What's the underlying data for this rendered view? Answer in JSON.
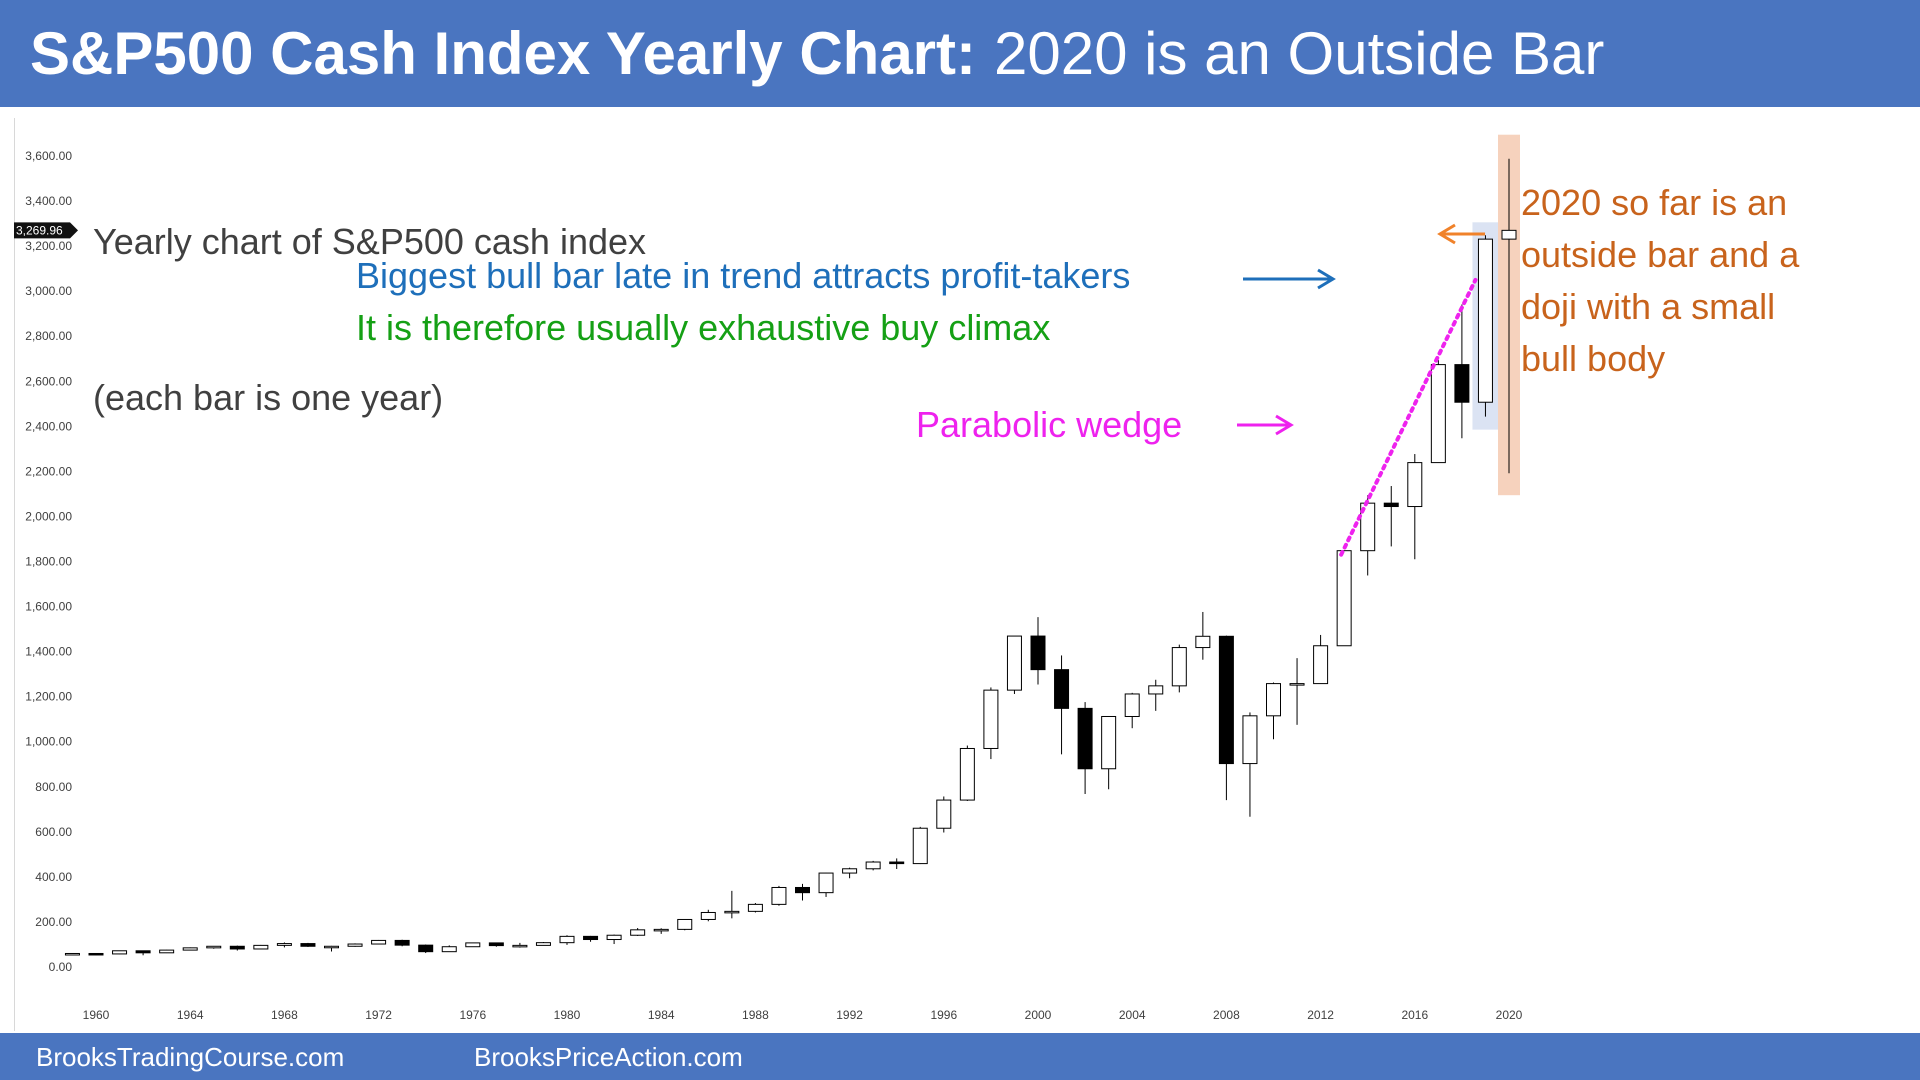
{
  "header": {
    "title_bold": "S&P500 Cash Index Yearly Chart:",
    "title_rest": "2020 is an Outside Bar",
    "background": "#4a75c0"
  },
  "footer": {
    "left": "BrooksTradingCourse.com",
    "right": "BrooksPriceAction.com"
  },
  "chart_data": {
    "type": "candlestick",
    "title": "Yearly chart of S&P500 cash index",
    "subtitle": "(each bar is one year)",
    "ylim": [
      0,
      3600
    ],
    "yticks": [
      0,
      200,
      400,
      600,
      800,
      1000,
      1200,
      1400,
      1600,
      1800,
      2000,
      2200,
      2400,
      2600,
      2800,
      3000,
      3200,
      3400,
      3600
    ],
    "ytick_labels": [
      "0.00",
      "200.00",
      "400.00",
      "600.00",
      "800.00",
      "1,000.00",
      "1,200.00",
      "1,400.00",
      "1,600.00",
      "1,800.00",
      "2,000.00",
      "2,200.00",
      "2,400.00",
      "2,600.00",
      "2,800.00",
      "3,000.00",
      "3,200.00",
      "3,400.00",
      "3,600.00"
    ],
    "xlim": [
      1958,
      2021
    ],
    "xticks": [
      1960,
      1964,
      1968,
      1972,
      1976,
      1980,
      1984,
      1988,
      1992,
      1996,
      2000,
      2004,
      2008,
      2012,
      2016,
      2020
    ],
    "current_price_label": "3,269.96",
    "current_price": 3269.96,
    "bull_color": "#ffffff",
    "bear_color": "#000000",
    "candles": [
      {
        "year": 1959,
        "open": 55,
        "high": 61,
        "low": 53,
        "close": 60
      },
      {
        "year": 1960,
        "open": 60,
        "high": 61,
        "low": 52,
        "close": 58
      },
      {
        "year": 1961,
        "open": 58,
        "high": 73,
        "low": 57,
        "close": 72
      },
      {
        "year": 1962,
        "open": 72,
        "high": 72,
        "low": 52,
        "close": 63
      },
      {
        "year": 1963,
        "open": 63,
        "high": 76,
        "low": 62,
        "close": 75
      },
      {
        "year": 1964,
        "open": 75,
        "high": 87,
        "low": 75,
        "close": 85
      },
      {
        "year": 1965,
        "open": 85,
        "high": 93,
        "low": 81,
        "close": 92
      },
      {
        "year": 1966,
        "open": 92,
        "high": 95,
        "low": 73,
        "close": 80
      },
      {
        "year": 1967,
        "open": 80,
        "high": 98,
        "low": 79,
        "close": 96
      },
      {
        "year": 1968,
        "open": 96,
        "high": 109,
        "low": 87,
        "close": 104
      },
      {
        "year": 1969,
        "open": 104,
        "high": 107,
        "low": 89,
        "close": 92
      },
      {
        "year": 1970,
        "open": 92,
        "high": 94,
        "low": 69,
        "close": 92
      },
      {
        "year": 1971,
        "open": 92,
        "high": 105,
        "low": 90,
        "close": 102
      },
      {
        "year": 1972,
        "open": 102,
        "high": 120,
        "low": 101,
        "close": 118
      },
      {
        "year": 1973,
        "open": 118,
        "high": 121,
        "low": 92,
        "close": 97
      },
      {
        "year": 1974,
        "open": 97,
        "high": 100,
        "low": 62,
        "close": 68
      },
      {
        "year": 1975,
        "open": 68,
        "high": 96,
        "low": 70,
        "close": 90
      },
      {
        "year": 1976,
        "open": 90,
        "high": 108,
        "low": 90,
        "close": 107
      },
      {
        "year": 1977,
        "open": 107,
        "high": 108,
        "low": 90,
        "close": 95
      },
      {
        "year": 1978,
        "open": 95,
        "high": 107,
        "low": 86,
        "close": 96
      },
      {
        "year": 1979,
        "open": 96,
        "high": 111,
        "low": 96,
        "close": 108
      },
      {
        "year": 1980,
        "open": 108,
        "high": 141,
        "low": 98,
        "close": 136
      },
      {
        "year": 1981,
        "open": 136,
        "high": 138,
        "low": 112,
        "close": 122
      },
      {
        "year": 1982,
        "open": 122,
        "high": 144,
        "low": 102,
        "close": 141
      },
      {
        "year": 1983,
        "open": 141,
        "high": 173,
        "low": 138,
        "close": 165
      },
      {
        "year": 1984,
        "open": 165,
        "high": 172,
        "low": 147,
        "close": 167
      },
      {
        "year": 1985,
        "open": 167,
        "high": 213,
        "low": 163,
        "close": 211
      },
      {
        "year": 1986,
        "open": 211,
        "high": 254,
        "low": 203,
        "close": 242
      },
      {
        "year": 1987,
        "open": 242,
        "high": 338,
        "low": 216,
        "close": 247
      },
      {
        "year": 1988,
        "open": 247,
        "high": 284,
        "low": 242,
        "close": 278
      },
      {
        "year": 1989,
        "open": 278,
        "high": 360,
        "low": 272,
        "close": 353
      },
      {
        "year": 1990,
        "open": 353,
        "high": 369,
        "low": 295,
        "close": 330
      },
      {
        "year": 1991,
        "open": 330,
        "high": 418,
        "low": 311,
        "close": 417
      },
      {
        "year": 1992,
        "open": 417,
        "high": 441,
        "low": 394,
        "close": 436
      },
      {
        "year": 1993,
        "open": 436,
        "high": 471,
        "low": 429,
        "close": 466
      },
      {
        "year": 1994,
        "open": 466,
        "high": 482,
        "low": 435,
        "close": 459
      },
      {
        "year": 1995,
        "open": 459,
        "high": 622,
        "low": 457,
        "close": 616
      },
      {
        "year": 1996,
        "open": 616,
        "high": 757,
        "low": 597,
        "close": 741
      },
      {
        "year": 1997,
        "open": 741,
        "high": 983,
        "low": 737,
        "close": 970
      },
      {
        "year": 1998,
        "open": 970,
        "high": 1241,
        "low": 923,
        "close": 1229
      },
      {
        "year": 1999,
        "open": 1229,
        "high": 1469,
        "low": 1212,
        "close": 1469
      },
      {
        "year": 2000,
        "open": 1469,
        "high": 1553,
        "low": 1254,
        "close": 1320
      },
      {
        "year": 2001,
        "open": 1320,
        "high": 1383,
        "low": 944,
        "close": 1148
      },
      {
        "year": 2002,
        "open": 1148,
        "high": 1176,
        "low": 768,
        "close": 880
      },
      {
        "year": 2003,
        "open": 880,
        "high": 1112,
        "low": 789,
        "close": 1112
      },
      {
        "year": 2004,
        "open": 1112,
        "high": 1217,
        "low": 1060,
        "close": 1212
      },
      {
        "year": 2005,
        "open": 1212,
        "high": 1275,
        "low": 1137,
        "close": 1248
      },
      {
        "year": 2006,
        "open": 1248,
        "high": 1431,
        "low": 1219,
        "close": 1418
      },
      {
        "year": 2007,
        "open": 1418,
        "high": 1576,
        "low": 1364,
        "close": 1468
      },
      {
        "year": 2008,
        "open": 1468,
        "high": 1471,
        "low": 741,
        "close": 903
      },
      {
        "year": 2009,
        "open": 903,
        "high": 1130,
        "low": 667,
        "close": 1115
      },
      {
        "year": 2010,
        "open": 1115,
        "high": 1263,
        "low": 1011,
        "close": 1258
      },
      {
        "year": 2011,
        "open": 1258,
        "high": 1371,
        "low": 1075,
        "close": 1258
      },
      {
        "year": 2012,
        "open": 1258,
        "high": 1474,
        "low": 1258,
        "close": 1426
      },
      {
        "year": 2013,
        "open": 1426,
        "high": 1849,
        "low": 1426,
        "close": 1848
      },
      {
        "year": 2014,
        "open": 1848,
        "high": 2094,
        "low": 1738,
        "close": 2059
      },
      {
        "year": 2015,
        "open": 2059,
        "high": 2135,
        "low": 1867,
        "close": 2044
      },
      {
        "year": 2016,
        "open": 2044,
        "high": 2277,
        "low": 1810,
        "close": 2239
      },
      {
        "year": 2017,
        "open": 2239,
        "high": 2695,
        "low": 2245,
        "close": 2674
      },
      {
        "year": 2018,
        "open": 2674,
        "high": 2941,
        "low": 2347,
        "close": 2507
      },
      {
        "year": 2019,
        "open": 2507,
        "high": 3248,
        "low": 2443,
        "close": 3231
      },
      {
        "year": 2020,
        "open": 3231,
        "high": 3588,
        "low": 2192,
        "close": 3270
      }
    ],
    "annotations": {
      "bull_bar_line1": "Biggest bull bar late in trend attracts profit-takers",
      "bull_bar_line2": "It is therefore usually exhaustive buy climax",
      "wedge": "Parabolic wedge",
      "outside_bar": "2020 so far is an\noutside bar and a\ndoji with a small\nbull body"
    },
    "colors": {
      "blue_text": "#1e6fba",
      "green_text": "#15a015",
      "magenta": "#ee22ee",
      "orange": "#c8631c",
      "orange_arrow": "#f0822a",
      "highlight_2019": "#dbe3f3",
      "highlight_2020": "#f6d2bd",
      "price_badge": "#111111"
    }
  }
}
